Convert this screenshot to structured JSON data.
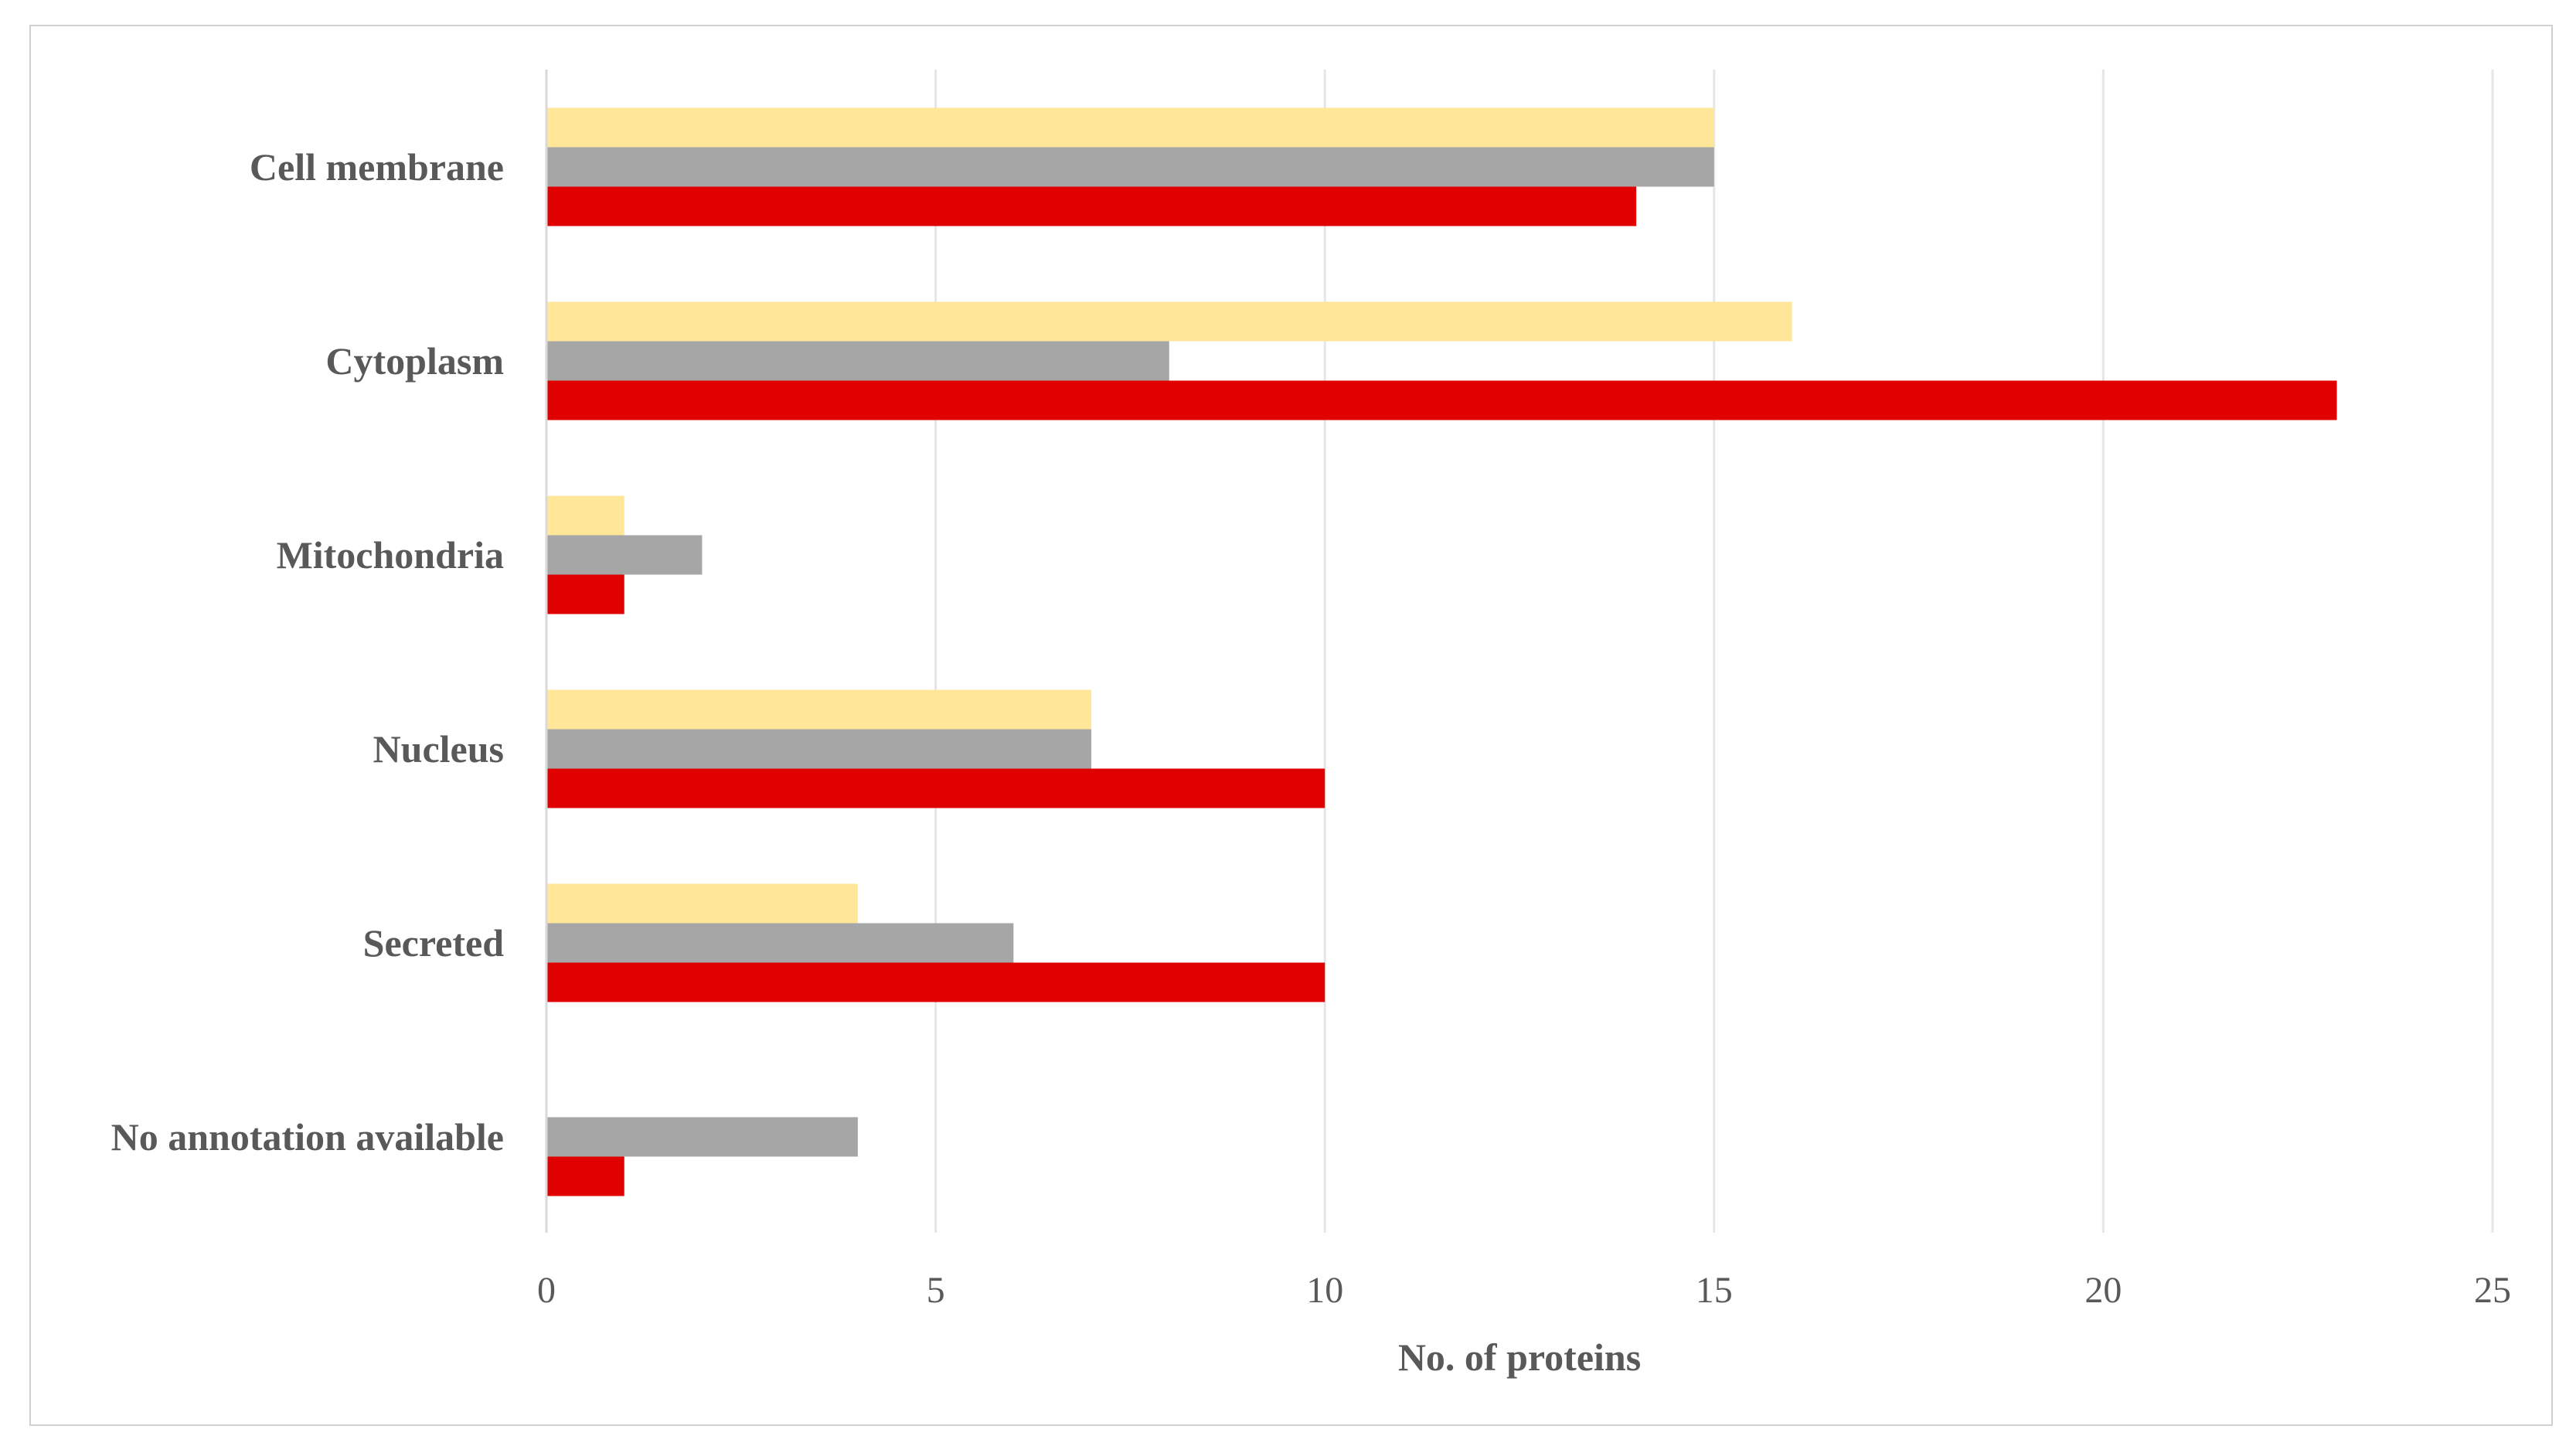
{
  "chart_data": {
    "type": "bar",
    "orientation": "horizontal",
    "categories": [
      "Cell membrane",
      "Cytoplasm",
      "Mitochondria",
      "Nucleus",
      "Secreted",
      "No annotation available"
    ],
    "series": [
      {
        "color": "#ffe699",
        "values": [
          15,
          16,
          1,
          7,
          4,
          0
        ]
      },
      {
        "color": "#a6a6a6",
        "values": [
          15,
          8,
          2,
          7,
          6,
          4
        ]
      },
      {
        "color": "#e00000",
        "values": [
          14,
          23,
          1,
          10,
          10,
          1
        ]
      }
    ],
    "xlabel": "No. of proteins",
    "ylabel": "",
    "title": "",
    "xlim": [
      0,
      25
    ],
    "xticks": [
      "0",
      "5",
      "10",
      "15",
      "20",
      "25"
    ],
    "grid": true,
    "legend": "none"
  }
}
